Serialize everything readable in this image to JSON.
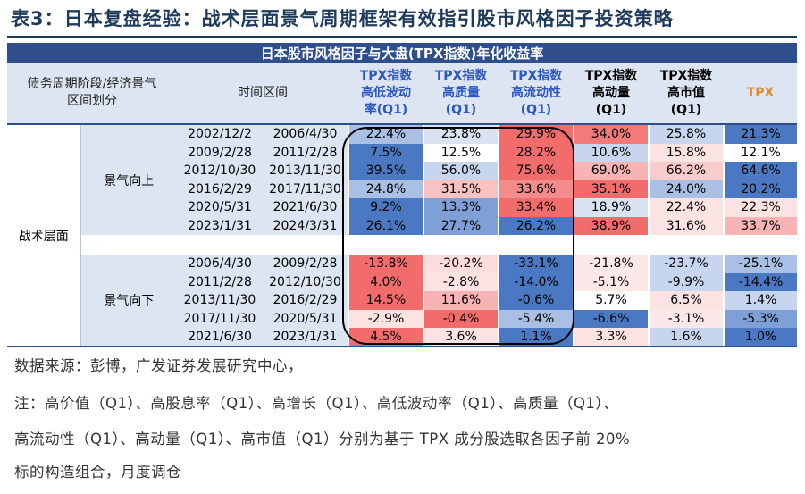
{
  "title": "表3：日本复盘经验：战术层面景气周期框架有效指引股市风格因子投资策略",
  "table": {
    "banner": "日本股市风格因子与大盘(TPX指数)年化收益率",
    "headers": {
      "cycle": "债务周期阶段/经济景气区间划分",
      "period": "时间区间",
      "c1": [
        "TPX指数",
        "高低波动",
        "率(Q1)"
      ],
      "c2": [
        "TPX指数",
        "高质量",
        "(Q1)"
      ],
      "c3": [
        "TPX指数",
        "高流动性",
        "(Q1)"
      ],
      "c4": [
        "TPX指数",
        "高动量",
        "(Q1)"
      ],
      "c5": [
        "TPX指数",
        "高市值",
        "(Q1)"
      ],
      "c6": "TPX"
    },
    "outer_label": "战术层面",
    "group_up": {
      "label": "景气向上",
      "rows": [
        {
          "start": "2002/12/2",
          "end": "2006/4/30",
          "v": [
            "22.4%",
            "23.8%",
            "29.9%",
            "34.0%",
            "25.8%",
            "21.3%"
          ],
          "c": [
            "#a9c0e4",
            "#dae3f2",
            "#f26c6c",
            "#f47a7a",
            "#c7d5ee",
            "#4a78c2"
          ]
        },
        {
          "start": "2009/2/28",
          "end": "2011/2/28",
          "v": [
            "7.5%",
            "12.5%",
            "28.2%",
            "10.6%",
            "15.8%",
            "12.1%"
          ],
          "c": [
            "#4a78c2",
            "#ffffff",
            "#f26c6c",
            "#c7d5ee",
            "#fce3e3",
            "#ffffff"
          ]
        },
        {
          "start": "2012/10/30",
          "end": "2013/11/30",
          "v": [
            "39.5%",
            "56.0%",
            "75.6%",
            "69.0%",
            "66.2%",
            "64.6%"
          ],
          "c": [
            "#4a78c2",
            "#c7d5ee",
            "#f26c6c",
            "#f8b4b4",
            "#f9cccc",
            "#4a78c2"
          ]
        },
        {
          "start": "2016/2/29",
          "end": "2017/11/30",
          "v": [
            "24.8%",
            "31.5%",
            "33.6%",
            "35.1%",
            "24.0%",
            "20.2%"
          ],
          "c": [
            "#a9c0e4",
            "#f8c2c2",
            "#f58c8c",
            "#f26c6c",
            "#a9c0e4",
            "#4a78c2"
          ]
        },
        {
          "start": "2020/5/31",
          "end": "2021/6/30",
          "v": [
            "9.2%",
            "13.3%",
            "33.4%",
            "18.9%",
            "22.4%",
            "22.3%"
          ],
          "c": [
            "#4a78c2",
            "#7fa0d6",
            "#f26c6c",
            "#dae3f2",
            "#fce3e3",
            "#fce3e3"
          ]
        },
        {
          "start": "2023/1/31",
          "end": "2024/3/31",
          "v": [
            "26.1%",
            "27.7%",
            "26.2%",
            "38.9%",
            "31.6%",
            "33.7%"
          ],
          "c": [
            "#4a78c2",
            "#7fa0d6",
            "#4a78c2",
            "#f26c6c",
            "#fce3e3",
            "#f8b4b4"
          ]
        }
      ]
    },
    "group_down": {
      "label": "景气向下",
      "rows": [
        {
          "start": "2006/4/30",
          "end": "2009/2/28",
          "v": [
            "-13.8%",
            "-20.2%",
            "-33.1%",
            "-21.8%",
            "-23.7%",
            "-25.1%"
          ],
          "c": [
            "#f26c6c",
            "#fcdcdc",
            "#4a78c2",
            "#fce8e8",
            "#c7d5ee",
            "#a9c0e4"
          ]
        },
        {
          "start": "2011/2/28",
          "end": "2012/10/30",
          "v": [
            "4.0%",
            "-2.8%",
            "-14.0%",
            "-5.1%",
            "-9.9%",
            "-14.4%"
          ],
          "c": [
            "#f26c6c",
            "#fce3e3",
            "#4a78c2",
            "#fce8e8",
            "#c7d5ee",
            "#4a78c2"
          ]
        },
        {
          "start": "2013/11/30",
          "end": "2016/2/29",
          "v": [
            "14.5%",
            "11.6%",
            "-0.6%",
            "5.7%",
            "6.5%",
            "1.4%"
          ],
          "c": [
            "#f26c6c",
            "#f8b4b4",
            "#4a78c2",
            "#ffffff",
            "#fce3e3",
            "#c7d5ee"
          ]
        },
        {
          "start": "2017/11/30",
          "end": "2020/5/31",
          "v": [
            "-2.9%",
            "-0.4%",
            "-5.4%",
            "-6.6%",
            "-3.1%",
            "-5.3%"
          ],
          "c": [
            "#fce3e3",
            "#f26c6c",
            "#a9c0e4",
            "#4a78c2",
            "#fce8e8",
            "#7fa0d6"
          ]
        },
        {
          "start": "2021/6/30",
          "end": "2023/1/31",
          "v": [
            "4.5%",
            "3.6%",
            "1.1%",
            "3.3%",
            "1.6%",
            "1.0%"
          ],
          "c": [
            "#f26c6c",
            "#fce3e3",
            "#4a78c2",
            "#fce3e3",
            "#c7d5ee",
            "#4a78c2"
          ]
        }
      ]
    }
  },
  "notes": {
    "source": "数据来源：彭博，广发证券发展研究中心，",
    "line1": "注：高价值（Q1）、高股息率（Q1）、高增长（Q1）、高低波动率（Q1）、高质量（Q1）、",
    "line2": "高流动性（Q1）、高动量（Q1）、高市值（Q1）分别为基于 TPX 成分股选取各因子前 20%",
    "line3": "标的构造组合，月度调仓"
  }
}
